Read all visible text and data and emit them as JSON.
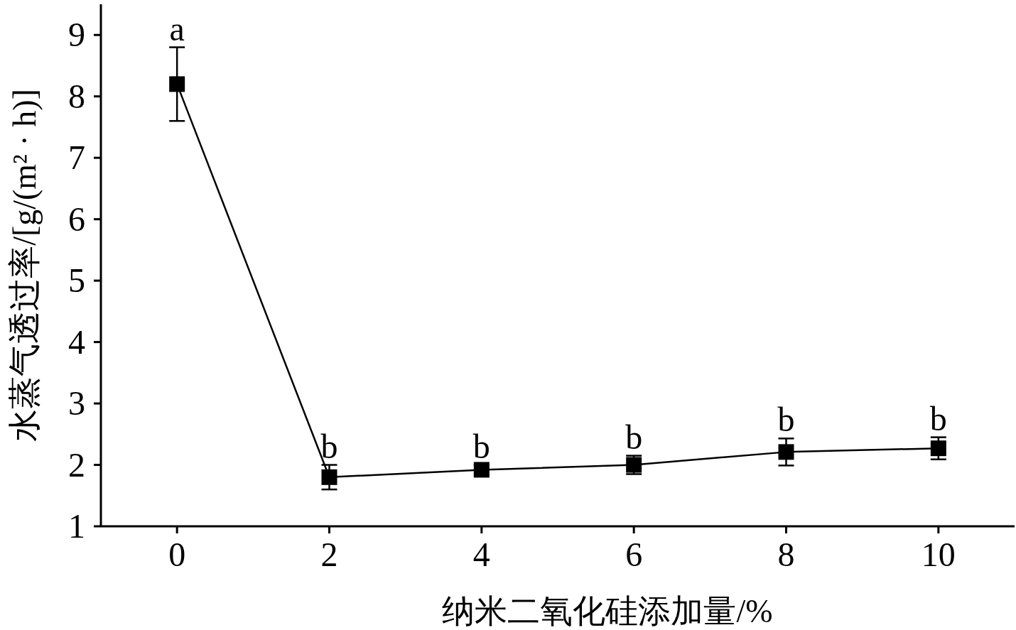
{
  "chart_data": {
    "type": "line",
    "xlabel": "纳米二氧化硅添加量/%",
    "ylabel": "水蒸气透过率/[g/(m² · h)]",
    "x": [
      0,
      2,
      4,
      6,
      8,
      10
    ],
    "values": [
      8.2,
      1.8,
      1.92,
      2.0,
      2.21,
      2.27
    ],
    "errors": [
      0.6,
      0.2,
      0.08,
      0.15,
      0.22,
      0.18
    ],
    "color": "#000000",
    "marker": "square",
    "line_style": "solid",
    "xlim": [
      -1,
      11
    ],
    "ylim": [
      1,
      9.5
    ],
    "xticks": [
      0,
      2,
      4,
      6,
      8,
      10
    ],
    "yticks": [
      1,
      2,
      3,
      4,
      5,
      6,
      7,
      8,
      9
    ],
    "annotations": [
      "a",
      "b",
      "b",
      "b",
      "b",
      "b"
    ]
  }
}
